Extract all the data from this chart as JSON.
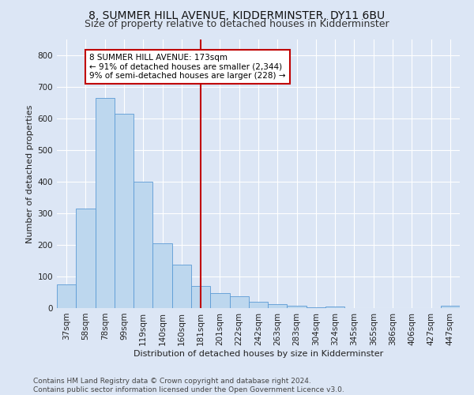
{
  "title": "8, SUMMER HILL AVENUE, KIDDERMINSTER, DY11 6BU",
  "subtitle": "Size of property relative to detached houses in Kidderminster",
  "xlabel": "Distribution of detached houses by size in Kidderminster",
  "ylabel": "Number of detached properties",
  "categories": [
    "37sqm",
    "58sqm",
    "78sqm",
    "99sqm",
    "119sqm",
    "140sqm",
    "160sqm",
    "181sqm",
    "201sqm",
    "222sqm",
    "242sqm",
    "263sqm",
    "283sqm",
    "304sqm",
    "324sqm",
    "345sqm",
    "365sqm",
    "386sqm",
    "406sqm",
    "427sqm",
    "447sqm"
  ],
  "values": [
    75,
    315,
    665,
    615,
    400,
    205,
    137,
    70,
    47,
    37,
    20,
    12,
    8,
    2,
    5,
    0,
    0,
    0,
    0,
    0,
    7
  ],
  "bar_color": "#bdd7ee",
  "bar_edge_color": "#5b9bd5",
  "vline_x": 7,
  "vline_color": "#c00000",
  "annotation_text": "8 SUMMER HILL AVENUE: 173sqm\n← 91% of detached houses are smaller (2,344)\n9% of semi-detached houses are larger (228) →",
  "annotation_box_color": "#ffffff",
  "annotation_box_edge": "#c00000",
  "ylim": [
    0,
    850
  ],
  "yticks": [
    0,
    100,
    200,
    300,
    400,
    500,
    600,
    700,
    800
  ],
  "footer": "Contains HM Land Registry data © Crown copyright and database right 2024.\nContains public sector information licensed under the Open Government Licence v3.0.",
  "bg_color": "#dce6f5",
  "plot_bg_color": "#dce6f5",
  "grid_color": "#ffffff",
  "title_fontsize": 10,
  "subtitle_fontsize": 9,
  "axis_label_fontsize": 8,
  "tick_fontsize": 7.5,
  "footer_fontsize": 6.5,
  "annotation_fontsize": 7.5
}
